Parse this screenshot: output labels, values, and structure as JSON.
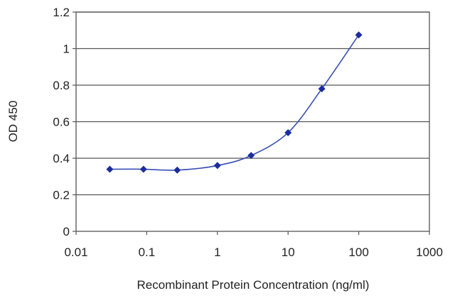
{
  "chart_data": {
    "type": "line",
    "xlabel": "Recombinant Protein Concentration (ng/ml)",
    "ylabel": "OD 450",
    "xscale": "log",
    "xlim": [
      0.01,
      1000
    ],
    "ylim": [
      0,
      1.2
    ],
    "x_ticks": [
      "0.01",
      "0.1",
      "1",
      "10",
      "100",
      "1000"
    ],
    "y_ticks": [
      "0",
      "0.2",
      "0.4",
      "0.6",
      "0.8",
      "1",
      "1.2"
    ],
    "grid": "horizontal",
    "series": [
      {
        "x": [
          0.03,
          0.09,
          0.27,
          1,
          3,
          10,
          30,
          100
        ],
        "y": [
          0.34,
          0.34,
          0.335,
          0.36,
          0.415,
          0.54,
          0.78,
          1.075
        ]
      }
    ],
    "colors": {
      "line": "#3a4fb5",
      "marker": "#1c2d9c",
      "grid": "#555555",
      "axis": "#555555"
    }
  }
}
